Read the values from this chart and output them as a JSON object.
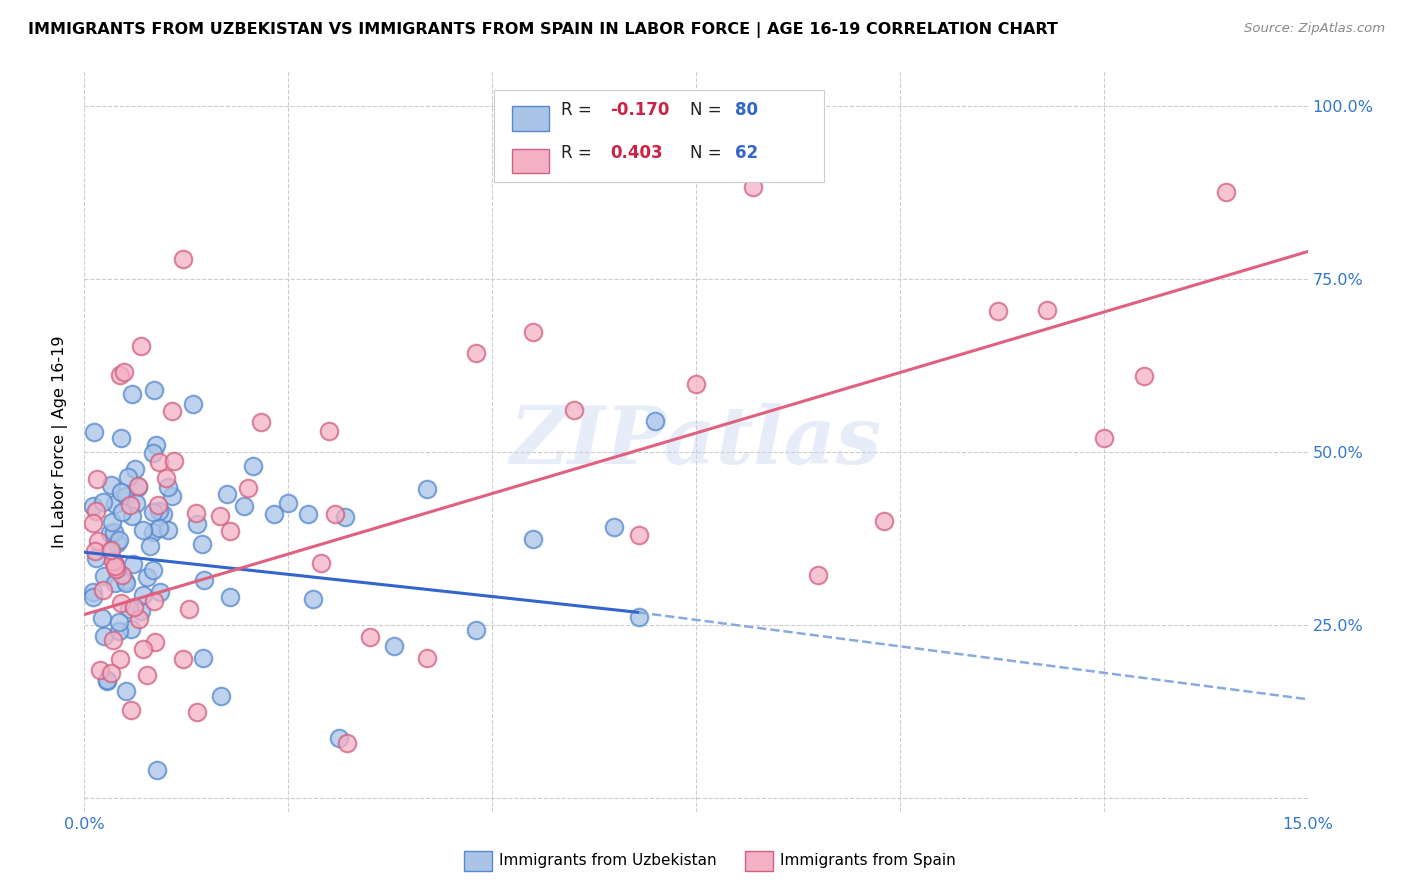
{
  "title": "IMMIGRANTS FROM UZBEKISTAN VS IMMIGRANTS FROM SPAIN IN LABOR FORCE | AGE 16-19 CORRELATION CHART",
  "source": "Source: ZipAtlas.com",
  "ylabel": "In Labor Force | Age 16-19",
  "xlim": [
    0.0,
    0.15
  ],
  "ylim": [
    -0.02,
    1.05
  ],
  "uzbekistan_color": "#aac4e8",
  "uzbekistan_edge": "#5588cc",
  "spain_color": "#f4b0c4",
  "spain_edge": "#d06080",
  "trend_uzbekistan_solid_color": "#3366cc",
  "trend_uzbekistan_dash_color": "#88aadd",
  "trend_spain_color": "#e06080",
  "watermark": "ZIPatlas",
  "uzbekistan_trend_x0": 0.0,
  "uzbekistan_trend_x1": 0.068,
  "uzbekistan_trend_y0": 0.355,
  "uzbekistan_trend_y1": 0.268,
  "uzbekistan_trend_dash_x0": 0.068,
  "uzbekistan_trend_dash_x1": 0.153,
  "uzbekistan_trend_dash_y0": 0.268,
  "uzbekistan_trend_dash_y1": 0.138,
  "spain_trend_x0": 0.0,
  "spain_trend_x1": 0.153,
  "spain_trend_y0": 0.265,
  "spain_trend_y1": 0.8,
  "seed": 1234,
  "uzbekistan_N": 80,
  "spain_N": 62
}
